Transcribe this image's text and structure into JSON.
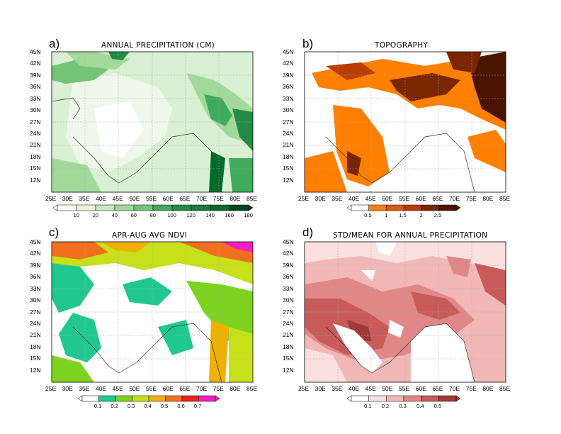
{
  "panels": [
    {
      "letter": "a)",
      "title": "ANNUAL PRECIPITATION (CM)",
      "colorbar_labels": [
        "10",
        "20",
        "40",
        "60",
        "80",
        "100",
        "120",
        "140",
        "160",
        "180"
      ],
      "colorbar_colors": [
        "#ffffff",
        "#e5f5e0",
        "#c7e9c0",
        "#a1d99b",
        "#74c476",
        "#41ab5d",
        "#238b45",
        "#1b7a3c",
        "#006d2c",
        "#00441b"
      ]
    },
    {
      "letter": "b)",
      "title": "TOPOGRAPHY",
      "colorbar_labels": [
        "0.5",
        "1",
        "1.5",
        "2",
        "2.5"
      ],
      "colorbar_colors": [
        "#ffffff",
        "#ff7f00",
        "#e05a00",
        "#b83d00",
        "#7a2600",
        "#4a1500"
      ]
    },
    {
      "letter": "c)",
      "title": "APR-AUG AVG NDVI",
      "colorbar_labels": [
        "0.1",
        "0.2",
        "0.3",
        "0.4",
        "0.5",
        "0.6",
        "0.7"
      ],
      "colorbar_colors": [
        "#ffffff",
        "#20c890",
        "#7ed321",
        "#c8e01a",
        "#f0b000",
        "#f07020",
        "#f02020",
        "#f020c0"
      ]
    },
    {
      "letter": "d)",
      "title": "STD/MEAN FOR ANNUAL PRECIPITATION",
      "colorbar_labels": [
        "0.1",
        "0.2",
        "0.3",
        "0.4",
        "0.5"
      ],
      "colorbar_colors": [
        "#ffffff",
        "#fbe0e0",
        "#f2b8b8",
        "#e08888",
        "#c85a5a",
        "#a03a3a"
      ]
    }
  ],
  "lat_labels": [
    "45N",
    "42N",
    "39N",
    "36N",
    "33N",
    "30N",
    "27N",
    "24N",
    "21N",
    "18N",
    "15N",
    "12N"
  ],
  "lon_labels": [
    "25E",
    "30E",
    "35E",
    "40E",
    "45E",
    "50E",
    "55E",
    "60E",
    "65E",
    "70E",
    "75E",
    "80E",
    "85E"
  ]
}
